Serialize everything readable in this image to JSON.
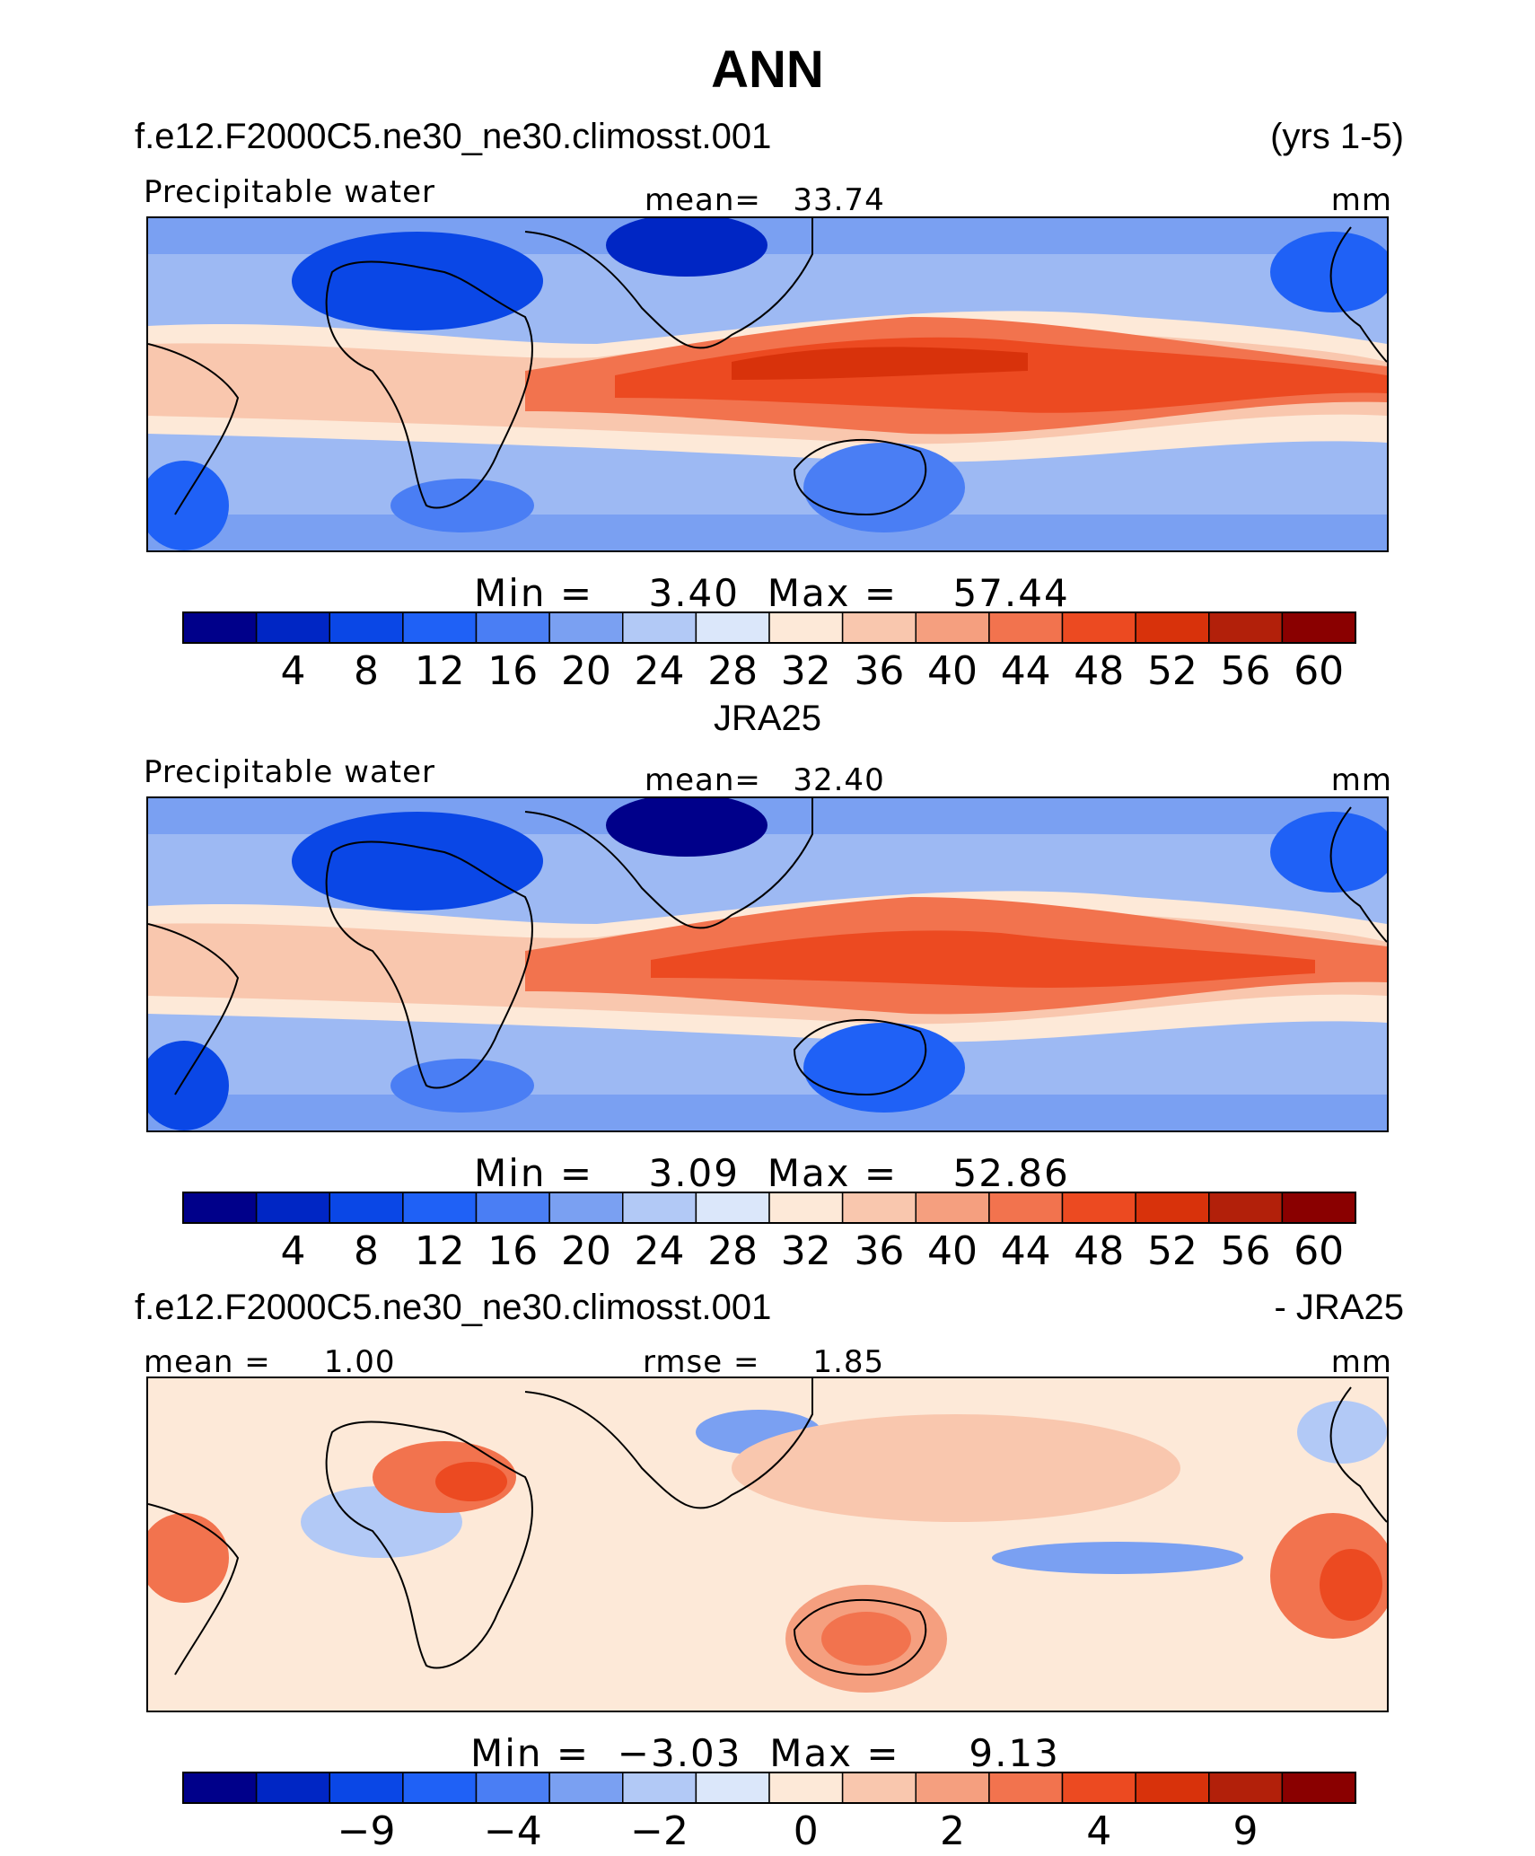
{
  "title": "ANN",
  "case_name": "f.e12.F2000C5.ne30_ne30.climosst.001",
  "years": "(yrs 1-5)",
  "panels": [
    {
      "variable": "Precipitable water",
      "mean_label": "mean=",
      "mean_value": "33.74",
      "units": "mm",
      "min_label": "Min =",
      "min_value": "3.40",
      "max_label": "Max =",
      "max_value": "57.44"
    },
    {
      "heading": "JRA25",
      "variable": "Precipitable water",
      "mean_label": "mean=",
      "mean_value": "32.40",
      "units": "mm",
      "min_label": "Min =",
      "min_value": "3.09",
      "max_label": "Max =",
      "max_value": "52.86"
    },
    {
      "heading_left": "f.e12.F2000C5.ne30_ne30.climosst.001",
      "heading_right": "- JRA25",
      "mean_label": "mean =",
      "mean_value": "1.00",
      "rmse_label": "rmse =",
      "rmse_value": "1.85",
      "units": "mm",
      "min_label": "Min =",
      "min_value": "−3.03",
      "max_label": "Max =",
      "max_value": "9.13"
    }
  ],
  "chart_data": [
    {
      "type": "heatmap",
      "subtype": "filled-contour map",
      "title": "Precipitable water",
      "dataset": "f.e12.F2000C5.ne30_ne30.climosst.001",
      "units": "mm",
      "mean": 33.74,
      "min": 3.4,
      "max": 57.44,
      "levels": [
        4,
        8,
        12,
        16,
        20,
        24,
        28,
        32,
        36,
        40,
        44,
        48,
        52,
        56,
        60
      ],
      "tick_labels": [
        "4",
        "8",
        "12",
        "16",
        "20",
        "24",
        "28",
        "32",
        "36",
        "40",
        "44",
        "48",
        "52",
        "56",
        "60"
      ]
    },
    {
      "type": "heatmap",
      "subtype": "filled-contour map",
      "title": "Precipitable water",
      "dataset": "JRA25",
      "units": "mm",
      "mean": 32.4,
      "min": 3.09,
      "max": 52.86,
      "levels": [
        4,
        8,
        12,
        16,
        20,
        24,
        28,
        32,
        36,
        40,
        44,
        48,
        52,
        56,
        60
      ],
      "tick_labels": [
        "4",
        "8",
        "12",
        "16",
        "20",
        "24",
        "28",
        "32",
        "36",
        "40",
        "44",
        "48",
        "52",
        "56",
        "60"
      ]
    },
    {
      "type": "heatmap",
      "subtype": "filled-contour difference map",
      "title": "f.e12.F2000C5.ne30_ne30.climosst.001 - JRA25",
      "units": "mm",
      "mean": 1.0,
      "rmse": 1.85,
      "min": -3.03,
      "max": 9.13,
      "levels": [
        -9,
        -6,
        -4,
        -3,
        -2,
        -1,
        0,
        1,
        2,
        3,
        4,
        6,
        9
      ],
      "tick_labels": [
        "−9",
        "−4",
        "−2",
        "0",
        "2",
        "4",
        "9"
      ],
      "tick_label_levels": [
        -9,
        -4,
        -2,
        0,
        2,
        4,
        9
      ]
    }
  ],
  "colors": {
    "scale": [
      "#00008a",
      "#0026c4",
      "#0a47e6",
      "#1f61f6",
      "#4a7ef4",
      "#7aa0f2",
      "#b2c9f6",
      "#dbe7fa",
      "#fde9d8",
      "#f9c7ae",
      "#f59f7f",
      "#f2734e",
      "#ec4a21",
      "#d8320b",
      "#b2200a",
      "#8a0000"
    ]
  }
}
